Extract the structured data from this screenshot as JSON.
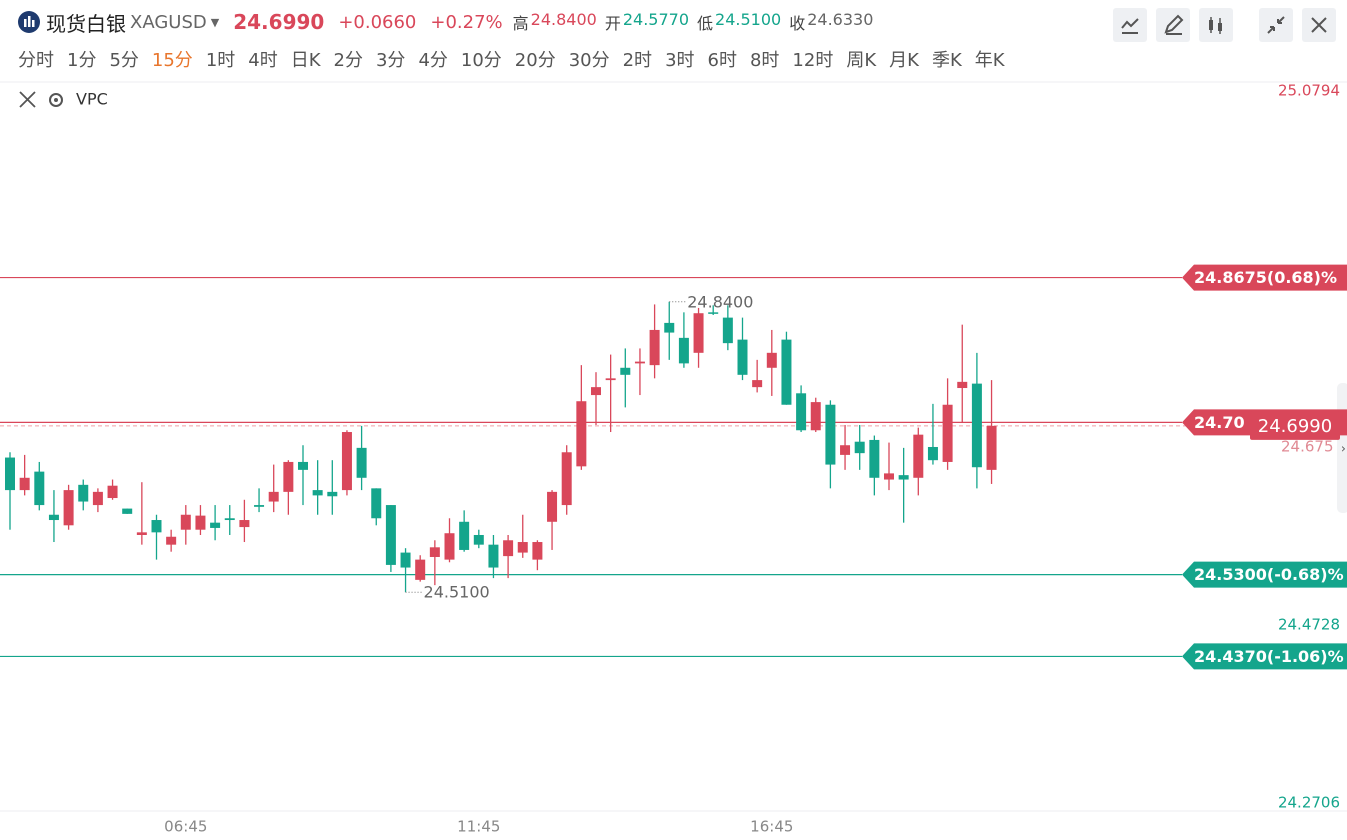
{
  "header": {
    "name": "现货白银",
    "symbol": "XAGUSD",
    "price": "24.6990",
    "change": "+0.0660",
    "change_pct": "+0.27%",
    "stats": [
      {
        "label": "高",
        "value": "24.8400"
      },
      {
        "label": "开",
        "value": "24.5770"
      },
      {
        "label": "低",
        "value": "24.5100"
      },
      {
        "label": "收",
        "value": "24.6330"
      }
    ]
  },
  "timeframes": [
    "分时",
    "1分",
    "5分",
    "15分",
    "1时",
    "4时",
    "日K",
    "2分",
    "3分",
    "4分",
    "10分",
    "20分",
    "30分",
    "2时",
    "3时",
    "6时",
    "8时",
    "12时",
    "周K",
    "月K",
    "季K",
    "年K"
  ],
  "indicator": "VPC",
  "chart": {
    "type": "candlestick",
    "up_color": "#d9475a",
    "down_color": "#14a58c",
    "ylim": [
      24.2625,
      25.0886
    ],
    "yticks": [
      25.0794,
      24.4728,
      24.2706
    ],
    "xticks": [
      {
        "value": 12,
        "label": "06:45"
      },
      {
        "value": 32,
        "label": "11:45"
      },
      {
        "value": 52,
        "label": "16:45"
      }
    ],
    "candles": [
      {
        "open": 24.663,
        "high": 24.669,
        "low": 24.581,
        "close": 24.626
      },
      {
        "open": 24.626,
        "high": 24.666,
        "low": 24.62,
        "close": 24.64
      },
      {
        "open": 24.647,
        "high": 24.658,
        "low": 24.603,
        "close": 24.609
      },
      {
        "open": 24.598,
        "high": 24.626,
        "low": 24.567,
        "close": 24.592
      },
      {
        "open": 24.586,
        "high": 24.632,
        "low": 24.581,
        "close": 24.626
      },
      {
        "open": 24.632,
        "high": 24.638,
        "low": 24.603,
        "close": 24.613
      },
      {
        "open": 24.609,
        "high": 24.628,
        "low": 24.601,
        "close": 24.624
      },
      {
        "open": 24.617,
        "high": 24.638,
        "low": 24.615,
        "close": 24.631
      },
      {
        "open": 24.605,
        "high": 24.605,
        "low": 24.599,
        "close": 24.599
      },
      {
        "open": 24.575,
        "high": 24.635,
        "low": 24.564,
        "close": 24.578
      },
      {
        "open": 24.592,
        "high": 24.598,
        "low": 24.547,
        "close": 24.578
      },
      {
        "open": 24.564,
        "high": 24.581,
        "low": 24.556,
        "close": 24.573
      },
      {
        "open": 24.581,
        "high": 24.609,
        "low": 24.564,
        "close": 24.598
      },
      {
        "open": 24.581,
        "high": 24.609,
        "low": 24.575,
        "close": 24.597
      },
      {
        "open": 24.589,
        "high": 24.609,
        "low": 24.569,
        "close": 24.583
      },
      {
        "open": 24.594,
        "high": 24.609,
        "low": 24.575,
        "close": 24.592
      },
      {
        "open": 24.584,
        "high": 24.615,
        "low": 24.567,
        "close": 24.592
      },
      {
        "open": 24.609,
        "high": 24.628,
        "low": 24.601,
        "close": 24.607
      },
      {
        "open": 24.613,
        "high": 24.655,
        "low": 24.601,
        "close": 24.624
      },
      {
        "open": 24.624,
        "high": 24.66,
        "low": 24.598,
        "close": 24.658
      },
      {
        "open": 24.658,
        "high": 24.677,
        "low": 24.609,
        "close": 24.649
      },
      {
        "open": 24.626,
        "high": 24.66,
        "low": 24.598,
        "close": 24.62
      },
      {
        "open": 24.624,
        "high": 24.66,
        "low": 24.598,
        "close": 24.619
      },
      {
        "open": 24.626,
        "high": 24.694,
        "low": 24.62,
        "close": 24.692
      },
      {
        "open": 24.674,
        "high": 24.699,
        "low": 24.626,
        "close": 24.64
      },
      {
        "open": 24.628,
        "high": 24.628,
        "low": 24.586,
        "close": 24.594
      },
      {
        "open": 24.609,
        "high": 24.609,
        "low": 24.533,
        "close": 24.541
      },
      {
        "open": 24.555,
        "high": 24.56,
        "low": 24.51,
        "close": 24.538
      },
      {
        "open": 24.524,
        "high": 24.552,
        "low": 24.522,
        "close": 24.547
      },
      {
        "open": 24.55,
        "high": 24.569,
        "low": 24.518,
        "close": 24.561
      },
      {
        "open": 24.547,
        "high": 24.594,
        "low": 24.544,
        "close": 24.577
      },
      {
        "open": 24.59,
        "high": 24.603,
        "low": 24.556,
        "close": 24.558
      },
      {
        "open": 24.575,
        "high": 24.581,
        "low": 24.56,
        "close": 24.564
      },
      {
        "open": 24.564,
        "high": 24.575,
        "low": 24.526,
        "close": 24.538
      },
      {
        "open": 24.551,
        "high": 24.575,
        "low": 24.526,
        "close": 24.569
      },
      {
        "open": 24.555,
        "high": 24.598,
        "low": 24.549,
        "close": 24.567
      },
      {
        "open": 24.547,
        "high": 24.569,
        "low": 24.535,
        "close": 24.567
      },
      {
        "open": 24.59,
        "high": 24.626,
        "low": 24.558,
        "close": 24.624
      },
      {
        "open": 24.609,
        "high": 24.677,
        "low": 24.598,
        "close": 24.669
      },
      {
        "open": 24.653,
        "high": 24.768,
        "low": 24.649,
        "close": 24.727
      },
      {
        "open": 24.734,
        "high": 24.76,
        "low": 24.7,
        "close": 24.743
      },
      {
        "open": 24.751,
        "high": 24.78,
        "low": 24.692,
        "close": 24.753
      },
      {
        "open": 24.765,
        "high": 24.787,
        "low": 24.72,
        "close": 24.757
      },
      {
        "open": 24.77,
        "high": 24.787,
        "low": 24.734,
        "close": 24.772
      },
      {
        "open": 24.768,
        "high": 24.837,
        "low": 24.753,
        "close": 24.808
      },
      {
        "open": 24.816,
        "high": 24.84,
        "low": 24.774,
        "close": 24.805
      },
      {
        "open": 24.799,
        "high": 24.828,
        "low": 24.765,
        "close": 24.77
      },
      {
        "open": 24.782,
        "high": 24.833,
        "low": 24.765,
        "close": 24.827
      },
      {
        "open": 24.828,
        "high": 24.836,
        "low": 24.825,
        "close": 24.827
      },
      {
        "open": 24.822,
        "high": 24.836,
        "low": 24.785,
        "close": 24.793
      },
      {
        "open": 24.797,
        "high": 24.822,
        "low": 24.751,
        "close": 24.757
      },
      {
        "open": 24.743,
        "high": 24.774,
        "low": 24.737,
        "close": 24.751
      },
      {
        "open": 24.765,
        "high": 24.808,
        "low": 24.733,
        "close": 24.782
      },
      {
        "open": 24.797,
        "high": 24.806,
        "low": 24.723,
        "close": 24.723
      },
      {
        "open": 24.736,
        "high": 24.745,
        "low": 24.692,
        "close": 24.694
      },
      {
        "open": 24.694,
        "high": 24.731,
        "low": 24.692,
        "close": 24.726
      },
      {
        "open": 24.723,
        "high": 24.728,
        "low": 24.628,
        "close": 24.655
      },
      {
        "open": 24.666,
        "high": 24.7,
        "low": 24.649,
        "close": 24.677
      },
      {
        "open": 24.681,
        "high": 24.7,
        "low": 24.649,
        "close": 24.668
      },
      {
        "open": 24.683,
        "high": 24.688,
        "low": 24.62,
        "close": 24.64
      },
      {
        "open": 24.638,
        "high": 24.68,
        "low": 24.626,
        "close": 24.645
      },
      {
        "open": 24.643,
        "high": 24.674,
        "low": 24.589,
        "close": 24.638
      },
      {
        "open": 24.64,
        "high": 24.697,
        "low": 24.62,
        "close": 24.689
      },
      {
        "open": 24.675,
        "high": 24.724,
        "low": 24.655,
        "close": 24.66
      },
      {
        "open": 24.658,
        "high": 24.753,
        "low": 24.649,
        "close": 24.723
      },
      {
        "open": 24.742,
        "high": 24.814,
        "low": 24.703,
        "close": 24.749
      },
      {
        "open": 24.747,
        "high": 24.782,
        "low": 24.628,
        "close": 24.652
      },
      {
        "open": 24.649,
        "high": 24.751,
        "low": 24.633,
        "close": 24.699
      }
    ],
    "lines": [
      {
        "value": 24.8675,
        "label": "24.8675(0.68)%",
        "color": "#d9475a"
      },
      {
        "value": 24.703,
        "label": "24.70",
        "color": "#d9475a"
      },
      {
        "value": 24.53,
        "label": "24.5300(-0.68)%",
        "color": "#14a58c"
      },
      {
        "value": 24.437,
        "label": "24.4370(-1.06)%",
        "color": "#14a58c"
      }
    ],
    "current_price": {
      "value": 24.699,
      "label": "24.6990",
      "color": "#d9475a"
    },
    "ref_label": {
      "value": 24.675,
      "label": "24.675"
    },
    "high_label": {
      "value": 24.84,
      "label": "24.8400"
    },
    "low_label": {
      "value": 24.51,
      "label": "24.5100"
    }
  }
}
